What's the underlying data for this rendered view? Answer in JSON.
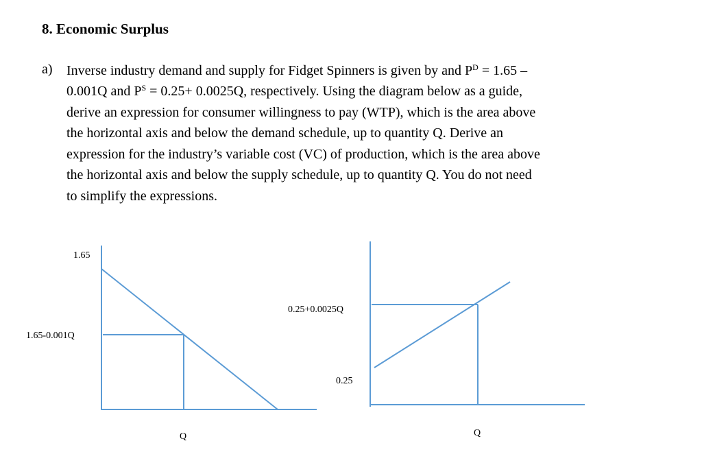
{
  "heading": {
    "number": "8.",
    "title": "Economic Surplus"
  },
  "question": {
    "part_label": "a)",
    "lines": {
      "l1_pre": "Inverse industry demand and supply for Fidget Spinners is given by and P",
      "l1_sup": "D",
      "l1_post": " = 1.65 –",
      "l2_pre": "0.001Q and P",
      "l2_sup": "S",
      "l2_post": " = 0.25+ 0.0025Q, respectively. Using the diagram below as a guide,",
      "l3": "derive an expression for consumer willingness to pay (WTP), which is the area above",
      "l4": "the horizontal axis and below the demand schedule, up to quantity Q. Derive an",
      "l5": "expression for the industry’s variable cost (VC) of production, which is the area above",
      "l6": "the horizontal axis and below the supply schedule, up to quantity Q.  You do not need",
      "l7": "to simplify the expressions."
    }
  },
  "demand_diagram": {
    "y_intercept_label": "1.65",
    "price_label": "1.65-0.001Q",
    "quantity_label": "Q"
  },
  "supply_diagram": {
    "price_label": "0.25+0.0025Q",
    "y_intercept_label": "0.25",
    "quantity_label": "Q"
  },
  "colors": {
    "diagram_lines": "#5b9bd5",
    "text": "#000000"
  }
}
